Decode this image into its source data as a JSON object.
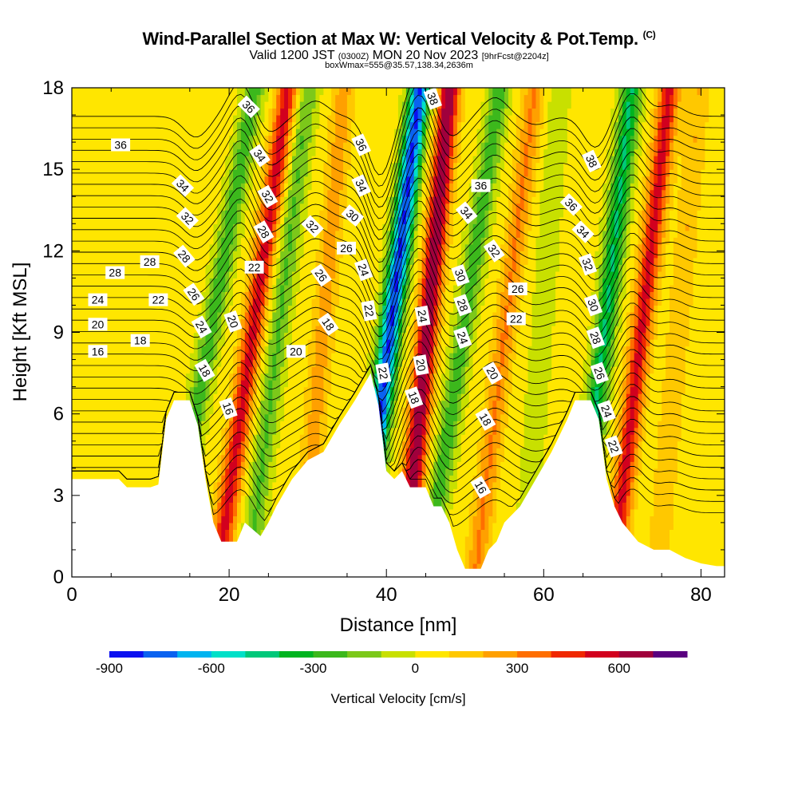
{
  "title": {
    "main": "Wind-Parallel Section at Max W: Vertical Velocity & Pot.Temp.",
    "mark": "(C)",
    "valid_a": "Valid 1200 JST",
    "valid_z": "(0300Z)",
    "valid_b": "MON 20 Nov 2023",
    "valid_fcst": "[9hrFcst@2204z]",
    "box": "boxWmax=555@35.57,138.34,2636m"
  },
  "chart_data": {
    "type": "heatmap",
    "xlabel": "Distance [nm]",
    "ylabel": "Height [Kft MSL]",
    "xlim": [
      0,
      83
    ],
    "ylim": [
      0,
      18
    ],
    "x_ticks": [
      0,
      20,
      40,
      60,
      80
    ],
    "y_ticks": [
      0,
      3,
      6,
      9,
      12,
      15,
      18
    ],
    "colorbar": {
      "label": "Vertical Velocity [cm/s]",
      "ticks": [
        -900,
        -600,
        -300,
        0,
        300,
        600
      ],
      "bins": [
        -900,
        -800,
        -700,
        -600,
        -500,
        -400,
        -300,
        -200,
        -100,
        0,
        100,
        200,
        300,
        400,
        500,
        600,
        700
      ],
      "colors": [
        "#0a10f0",
        "#0a62f0",
        "#00b4f0",
        "#00e0c8",
        "#00c87a",
        "#00b420",
        "#3cb81c",
        "#7cc81a",
        "#c8e000",
        "#ffe600",
        "#ffc800",
        "#ffa000",
        "#ff6e00",
        "#f02800",
        "#d2001e",
        "#a0003c",
        "#5a0080"
      ]
    },
    "terrain": [
      [
        0,
        3.6
      ],
      [
        3,
        3.6
      ],
      [
        6,
        3.6
      ],
      [
        7,
        3.3
      ],
      [
        10,
        3.3
      ],
      [
        11,
        3.4
      ],
      [
        12,
        5.8
      ],
      [
        13,
        6.5
      ],
      [
        15,
        6.5
      ],
      [
        16,
        5.6
      ],
      [
        17,
        3.6
      ],
      [
        18,
        2.0
      ],
      [
        19,
        1.3
      ],
      [
        21,
        1.3
      ],
      [
        22,
        2.0
      ],
      [
        24,
        1.5
      ],
      [
        25,
        2.0
      ],
      [
        26,
        2.6
      ],
      [
        28,
        3.6
      ],
      [
        30,
        4.3
      ],
      [
        32,
        4.6
      ],
      [
        34,
        5.6
      ],
      [
        36,
        6.5
      ],
      [
        38,
        7.5
      ],
      [
        39,
        6.3
      ],
      [
        40,
        3.9
      ],
      [
        41,
        3.6
      ],
      [
        42,
        3.9
      ],
      [
        43,
        3.3
      ],
      [
        45,
        3.3
      ],
      [
        46,
        2.6
      ],
      [
        47,
        2.6
      ],
      [
        48,
        2.0
      ],
      [
        49,
        1.0
      ],
      [
        50,
        0.3
      ],
      [
        52,
        0.3
      ],
      [
        53,
        1.0
      ],
      [
        54,
        1.3
      ],
      [
        55,
        2.0
      ],
      [
        57,
        2.6
      ],
      [
        59,
        3.6
      ],
      [
        61,
        4.6
      ],
      [
        63,
        5.8
      ],
      [
        64,
        6.5
      ],
      [
        66,
        6.5
      ],
      [
        67,
        5.8
      ],
      [
        68,
        3.6
      ],
      [
        69,
        2.6
      ],
      [
        70,
        2.0
      ],
      [
        72,
        1.3
      ],
      [
        74,
        1.0
      ],
      [
        76,
        1.0
      ],
      [
        78,
        0.7
      ],
      [
        80,
        0.5
      ],
      [
        82,
        0.4
      ],
      [
        83,
        0.4
      ]
    ],
    "w_ridges": [
      {
        "x": 15.8,
        "slope": 0.62,
        "amp": -300
      },
      {
        "x": 21.5,
        "slope": 0.5,
        "amp": 500
      },
      {
        "x": 25.0,
        "slope": 0.42,
        "amp": -250
      },
      {
        "x": 31.0,
        "slope": 0.3,
        "amp": 220
      },
      {
        "x": 39.2,
        "slope": 0.42,
        "amp": -850
      },
      {
        "x": 44.2,
        "slope": 0.32,
        "amp": 650
      },
      {
        "x": 48.2,
        "slope": 0.52,
        "amp": -300
      },
      {
        "x": 53.8,
        "slope": 0.42,
        "amp": 270
      },
      {
        "x": 59.0,
        "slope": 0.25,
        "amp": -120
      },
      {
        "x": 66.6,
        "slope": 0.38,
        "amp": -450
      },
      {
        "x": 71.2,
        "slope": 0.4,
        "amp": 500
      },
      {
        "x": 76.2,
        "slope": 0.3,
        "amp": 160
      }
    ],
    "theta_levels": [
      16,
      18,
      20,
      22,
      24,
      26,
      28,
      30,
      32,
      34,
      36,
      38
    ],
    "theta_labels": [
      {
        "text": "36",
        "x": 6.2,
        "y": 15.9,
        "rot": 0
      },
      {
        "text": "34",
        "x": 14.1,
        "y": 14.4,
        "rot": 45
      },
      {
        "text": "32",
        "x": 14.7,
        "y": 13.2,
        "rot": 45
      },
      {
        "text": "28",
        "x": 9.9,
        "y": 11.6,
        "rot": 0
      },
      {
        "text": "28",
        "x": 5.5,
        "y": 11.2,
        "rot": 0
      },
      {
        "text": "28",
        "x": 14.3,
        "y": 11.8,
        "rot": 50
      },
      {
        "text": "26",
        "x": 15.5,
        "y": 10.4,
        "rot": 55
      },
      {
        "text": "24",
        "x": 3.3,
        "y": 10.2,
        "rot": 0
      },
      {
        "text": "22",
        "x": 11.0,
        "y": 10.2,
        "rot": 0
      },
      {
        "text": "24",
        "x": 16.5,
        "y": 9.2,
        "rot": 60
      },
      {
        "text": "20",
        "x": 3.3,
        "y": 9.3,
        "rot": 0
      },
      {
        "text": "18",
        "x": 8.7,
        "y": 8.7,
        "rot": 0
      },
      {
        "text": "16",
        "x": 3.3,
        "y": 8.3,
        "rot": 0
      },
      {
        "text": "18",
        "x": 16.9,
        "y": 7.6,
        "rot": 60
      },
      {
        "text": "16",
        "x": 19.9,
        "y": 6.2,
        "rot": 70
      },
      {
        "text": "36",
        "x": 22.5,
        "y": 17.3,
        "rot": 45
      },
      {
        "text": "34",
        "x": 23.9,
        "y": 15.5,
        "rot": 55
      },
      {
        "text": "32",
        "x": 24.9,
        "y": 14.0,
        "rot": 60
      },
      {
        "text": "28",
        "x": 24.4,
        "y": 12.7,
        "rot": 60
      },
      {
        "text": "22",
        "x": 23.2,
        "y": 11.4,
        "rot": 0
      },
      {
        "text": "20",
        "x": 20.5,
        "y": 9.4,
        "rot": 70
      },
      {
        "text": "32",
        "x": 30.6,
        "y": 12.9,
        "rot": 45
      },
      {
        "text": "26",
        "x": 31.7,
        "y": 11.1,
        "rot": 55
      },
      {
        "text": "20",
        "x": 28.5,
        "y": 8.3,
        "rot": 0
      },
      {
        "text": "18",
        "x": 32.6,
        "y": 9.3,
        "rot": 55
      },
      {
        "text": "36",
        "x": 36.8,
        "y": 15.9,
        "rot": 65
      },
      {
        "text": "34",
        "x": 36.8,
        "y": 14.4,
        "rot": 65
      },
      {
        "text": "30",
        "x": 35.7,
        "y": 13.3,
        "rot": 40
      },
      {
        "text": "26",
        "x": 34.9,
        "y": 12.1,
        "rot": 0
      },
      {
        "text": "24",
        "x": 37.1,
        "y": 11.3,
        "rot": 70
      },
      {
        "text": "22",
        "x": 37.8,
        "y": 9.8,
        "rot": 80
      },
      {
        "text": "22",
        "x": 39.6,
        "y": 7.5,
        "rot": 80
      },
      {
        "text": "38",
        "x": 45.9,
        "y": 17.6,
        "rot": 70
      },
      {
        "text": "24",
        "x": 44.6,
        "y": 9.6,
        "rot": 80
      },
      {
        "text": "20",
        "x": 44.4,
        "y": 7.8,
        "rot": 80
      },
      {
        "text": "18",
        "x": 43.5,
        "y": 6.6,
        "rot": 70
      },
      {
        "text": "36",
        "x": 52.0,
        "y": 14.4,
        "rot": 0
      },
      {
        "text": "34",
        "x": 50.2,
        "y": 13.4,
        "rot": 50
      },
      {
        "text": "32",
        "x": 53.7,
        "y": 12.0,
        "rot": 55
      },
      {
        "text": "30",
        "x": 49.4,
        "y": 11.1,
        "rot": 70
      },
      {
        "text": "28",
        "x": 49.7,
        "y": 10.0,
        "rot": 70
      },
      {
        "text": "24",
        "x": 49.7,
        "y": 8.8,
        "rot": 70
      },
      {
        "text": "26",
        "x": 56.7,
        "y": 10.6,
        "rot": 0
      },
      {
        "text": "22",
        "x": 56.5,
        "y": 9.5,
        "rot": 0
      },
      {
        "text": "20",
        "x": 53.5,
        "y": 7.5,
        "rot": 60
      },
      {
        "text": "18",
        "x": 52.6,
        "y": 5.8,
        "rot": 60
      },
      {
        "text": "16",
        "x": 52.0,
        "y": 3.3,
        "rot": 60
      },
      {
        "text": "38",
        "x": 66.1,
        "y": 15.3,
        "rot": 65
      },
      {
        "text": "36",
        "x": 63.5,
        "y": 13.7,
        "rot": 45
      },
      {
        "text": "34",
        "x": 65.0,
        "y": 12.7,
        "rot": 45
      },
      {
        "text": "32",
        "x": 65.6,
        "y": 11.5,
        "rot": 70
      },
      {
        "text": "30",
        "x": 66.3,
        "y": 10.0,
        "rot": 70
      },
      {
        "text": "28",
        "x": 66.6,
        "y": 8.8,
        "rot": 70
      },
      {
        "text": "26",
        "x": 67.1,
        "y": 7.5,
        "rot": 70
      },
      {
        "text": "24",
        "x": 68.0,
        "y": 6.1,
        "rot": 70
      },
      {
        "text": "22",
        "x": 68.9,
        "y": 4.8,
        "rot": 70
      }
    ]
  }
}
